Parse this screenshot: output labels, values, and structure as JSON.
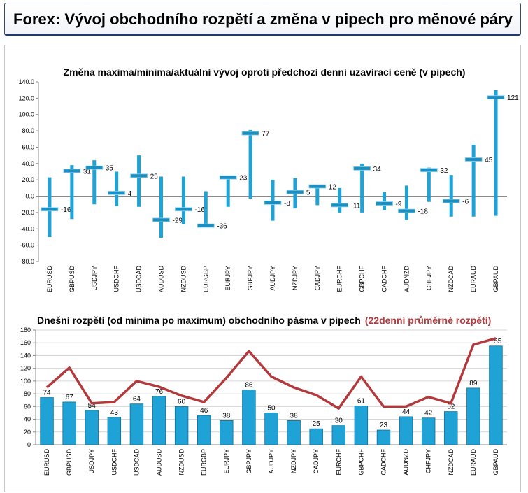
{
  "header": {
    "title": "Forex: Vývoj obchodního rozpětí a změna v pipech pro měnové páry"
  },
  "colors": {
    "bar": "#1fa3d6",
    "line": "#b23a3c",
    "legend_red": "#b23a3c",
    "text": "#000000"
  },
  "chart_data": [
    {
      "type": "range",
      "title": "Změna maxima/minima/aktuální vývoj oproti předchozí denní uzavírací ceně (v pipech)",
      "categories": [
        "EURUSD",
        "GBPUSD",
        "USDJPY",
        "USDCHF",
        "USDCAD",
        "AUDUSD",
        "NZDUSD",
        "EURGBP",
        "EURJPY",
        "GBPJPY",
        "AUDJPY",
        "NZDJPY",
        "CADJPY",
        "EURCHF",
        "GBPCHF",
        "CADCHF",
        "AUDNZD",
        "CHFJPY",
        "NZDCAD",
        "EURAUD",
        "GBPAUD"
      ],
      "high": [
        23,
        38,
        44,
        30,
        50,
        24,
        24,
        6,
        24,
        81,
        20,
        22,
        14,
        10,
        40,
        5,
        13,
        35,
        26,
        63,
        130
      ],
      "low": [
        -50,
        -28,
        -10,
        -12,
        -13,
        -51,
        -34,
        -38,
        -13,
        -3,
        -30,
        -15,
        -11,
        -20,
        -20,
        -17,
        -29,
        -7,
        -25,
        -25,
        -24
      ],
      "current": [
        -16,
        31,
        35,
        4,
        25,
        -29,
        -16,
        -36,
        23,
        77,
        -8,
        5,
        12,
        -11,
        34,
        -9,
        -18,
        32,
        -6,
        45,
        121
      ],
      "labels": [
        "-16",
        "31",
        "35",
        "4",
        "25",
        "-29",
        "-16",
        "-36",
        "23",
        "77",
        "-8",
        "5",
        "12",
        "-11",
        "34",
        "-9",
        "-18",
        "32",
        "-6",
        "45",
        "121"
      ],
      "y_ticks": [
        "140.0",
        "120.0",
        "100.0",
        "80.0",
        "60.0",
        "40.0",
        "20.0",
        "0.0",
        "-20.0",
        "-40.0",
        "-60.0",
        "-80.0"
      ],
      "ylim": [
        -80,
        140
      ]
    },
    {
      "type": "bar+line",
      "title": "Dnešní rozpětí (od minima po maximum) obchodního pásma v pipech",
      "title_extra": "(22denní průměrné rozpětí)",
      "categories": [
        "EURUSD",
        "GBPUSD",
        "USDJPY",
        "USDCHF",
        "USDCAD",
        "AUDUSD",
        "NZDUSD",
        "EURGBP",
        "EURJPY",
        "GBPJPY",
        "AUDJPY",
        "NZDJPY",
        "CADJPY",
        "EURCHF",
        "GBPCHF",
        "CADCHF",
        "AUDNZD",
        "CHFJPY",
        "NZDCAD",
        "EURAUD",
        "GBPAUD"
      ],
      "values": [
        74,
        67,
        54,
        43,
        64,
        76,
        60,
        46,
        38,
        86,
        50,
        38,
        25,
        30,
        61,
        23,
        44,
        42,
        52,
        89,
        155
      ],
      "labels": [
        "74",
        "67",
        "54",
        "43",
        "64",
        "76",
        "60",
        "46",
        "38",
        "86",
        "50",
        "38",
        "25",
        "30",
        "61",
        "23",
        "44",
        "42",
        "52",
        "89",
        "155"
      ],
      "average": [
        90,
        121,
        65,
        67,
        100,
        91,
        77,
        67,
        105,
        147,
        107,
        90,
        78,
        57,
        107,
        60,
        60,
        75,
        65,
        157,
        167
      ],
      "y_ticks": [
        "180",
        "160",
        "140",
        "120",
        "100",
        "80",
        "60",
        "40",
        "20",
        "0"
      ],
      "ylim": [
        0,
        180
      ]
    }
  ]
}
